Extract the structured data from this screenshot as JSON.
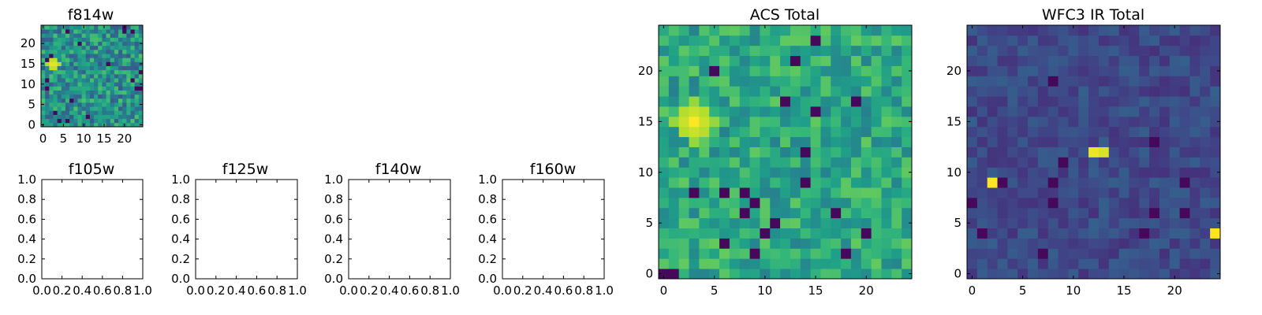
{
  "chart_data": [
    {
      "type": "heatmap",
      "title": "f814w",
      "colormap": "viridis",
      "size": 25,
      "xlim": [
        -0.5,
        24.5
      ],
      "ylim": [
        -0.5,
        24.5
      ],
      "x_ticks": [
        0,
        5,
        10,
        15,
        20
      ],
      "y_ticks": [
        0,
        5,
        10,
        15,
        20
      ],
      "x_tick_labels": [
        "0",
        "5",
        "10",
        "15",
        "20"
      ],
      "y_tick_labels": [
        "0",
        "5",
        "10",
        "15",
        "20"
      ],
      "features": [
        {
          "x": 2.5,
          "y": 15,
          "radius": 1.8,
          "value": 1.0
        }
      ],
      "background": {
        "mean": 0.5,
        "spread": 0.22
      }
    },
    {
      "type": "heatmap",
      "title": "f105w",
      "empty": true,
      "xlim": [
        0.0,
        1.0
      ],
      "ylim": [
        0.0,
        1.0
      ],
      "x_ticks": [
        0.0,
        0.2,
        0.4,
        0.6,
        0.8,
        1.0
      ],
      "y_ticks": [
        0.0,
        0.2,
        0.4,
        0.6,
        0.8,
        1.0
      ],
      "x_tick_labels": [
        "0.0",
        "0.2",
        "0.4",
        "0.6",
        "0.8",
        "1.0"
      ],
      "y_tick_labels": [
        "0.0",
        "0.2",
        "0.4",
        "0.6",
        "0.8",
        "1.0"
      ]
    },
    {
      "type": "heatmap",
      "title": "f125w",
      "empty": true,
      "xlim": [
        0.0,
        1.0
      ],
      "ylim": [
        0.0,
        1.0
      ],
      "x_ticks": [
        0.0,
        0.2,
        0.4,
        0.6,
        0.8,
        1.0
      ],
      "y_ticks": [
        0.0,
        0.2,
        0.4,
        0.6,
        0.8,
        1.0
      ],
      "x_tick_labels": [
        "0.0",
        "0.2",
        "0.4",
        "0.6",
        "0.8",
        "1.0"
      ],
      "y_tick_labels": [
        "0.0",
        "0.2",
        "0.4",
        "0.6",
        "0.8",
        "1.0"
      ]
    },
    {
      "type": "heatmap",
      "title": "f140w",
      "empty": true,
      "xlim": [
        0.0,
        1.0
      ],
      "ylim": [
        0.0,
        1.0
      ],
      "x_ticks": [
        0.0,
        0.2,
        0.4,
        0.6,
        0.8,
        1.0
      ],
      "y_ticks": [
        0.0,
        0.2,
        0.4,
        0.6,
        0.8,
        1.0
      ],
      "x_tick_labels": [
        "0.0",
        "0.2",
        "0.4",
        "0.6",
        "0.8",
        "1.0"
      ],
      "y_tick_labels": [
        "0.0",
        "0.2",
        "0.4",
        "0.6",
        "0.8",
        "1.0"
      ]
    },
    {
      "type": "heatmap",
      "title": "f160w",
      "empty": true,
      "xlim": [
        0.0,
        1.0
      ],
      "ylim": [
        0.0,
        1.0
      ],
      "x_ticks": [
        0.0,
        0.2,
        0.4,
        0.6,
        0.8,
        1.0
      ],
      "y_ticks": [
        0.0,
        0.2,
        0.4,
        0.6,
        0.8,
        1.0
      ],
      "x_tick_labels": [
        "0.0",
        "0.2",
        "0.4",
        "0.6",
        "0.8",
        "1.0"
      ],
      "y_tick_labels": [
        "0.0",
        "0.2",
        "0.4",
        "0.6",
        "0.8",
        "1.0"
      ]
    },
    {
      "type": "heatmap",
      "title": "ACS Total",
      "colormap": "viridis",
      "size": 25,
      "xlim": [
        -0.5,
        24.5
      ],
      "ylim": [
        -0.5,
        24.5
      ],
      "x_ticks": [
        0,
        5,
        10,
        15,
        20
      ],
      "y_ticks": [
        0,
        5,
        10,
        15,
        20
      ],
      "x_tick_labels": [
        "0",
        "5",
        "10",
        "15",
        "20"
      ],
      "y_tick_labels": [
        "0",
        "5",
        "10",
        "15",
        "20"
      ],
      "features": [
        {
          "x": 3,
          "y": 15,
          "radius": 2.0,
          "value": 1.0
        }
      ],
      "background": {
        "mean": 0.6,
        "spread": 0.16
      }
    },
    {
      "type": "heatmap",
      "title": "WFC3 IR Total",
      "colormap": "viridis",
      "size": 25,
      "xlim": [
        -0.5,
        24.5
      ],
      "ylim": [
        -0.5,
        24.5
      ],
      "x_ticks": [
        0,
        5,
        10,
        15,
        20
      ],
      "y_ticks": [
        0,
        5,
        10,
        15,
        20
      ],
      "x_tick_labels": [
        "0",
        "5",
        "10",
        "15",
        "20"
      ],
      "y_tick_labels": [
        "0",
        "5",
        "10",
        "15",
        "20"
      ],
      "features": [
        {
          "x": 2,
          "y": 9,
          "radius": 0.9,
          "value": 1.0
        },
        {
          "x": 12.3,
          "y": 12,
          "radius": 0.9,
          "value": 1.0
        },
        {
          "x": 24,
          "y": 4,
          "radius": 0.8,
          "value": 1.0
        }
      ],
      "background": {
        "mean": 0.22,
        "spread": 0.08
      }
    }
  ]
}
